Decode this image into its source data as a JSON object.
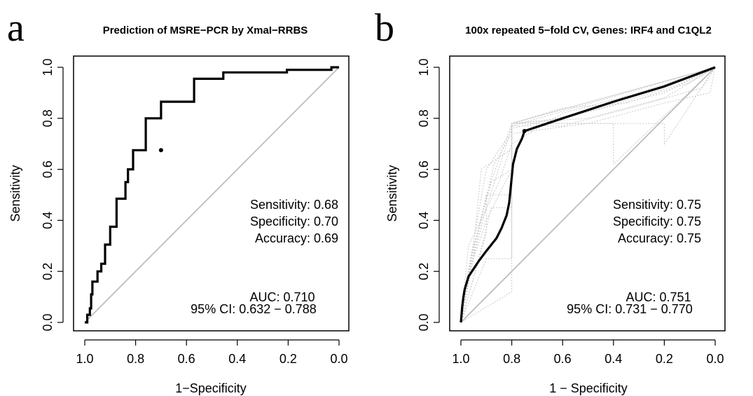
{
  "colors": {
    "roc_line": "#000000",
    "diagonal": "#bdbdbd",
    "cv_curves": "#c8c8c8",
    "frame": "#000000"
  },
  "chart_data": [
    {
      "type": "line",
      "panel_letter": "a",
      "title": "Prediction of MSRE−PCR by XmaI−RRBS",
      "xlabel": "1−Specificity",
      "ylabel": "Sensitivity",
      "xlim": [
        1.0,
        0.0
      ],
      "ylim": [
        0.0,
        1.0
      ],
      "x_reversed": true,
      "xticks": [
        "1.0",
        "0.8",
        "0.6",
        "0.4",
        "0.2",
        "0.0"
      ],
      "yticks": [
        "0.0",
        "0.2",
        "0.4",
        "0.6",
        "0.8",
        "1.0"
      ],
      "grid": false,
      "diagonal": true,
      "series": [
        {
          "x": [
            1.0,
            0.99,
            0.99,
            0.98,
            0.98,
            0.975,
            0.975,
            0.97,
            0.97,
            0.95,
            0.95,
            0.935,
            0.935,
            0.92,
            0.92,
            0.9,
            0.9,
            0.875,
            0.875,
            0.84,
            0.84,
            0.83,
            0.83,
            0.81,
            0.81,
            0.76,
            0.76,
            0.7,
            0.7,
            0.57,
            0.57,
            0.455,
            0.455,
            0.205,
            0.205,
            0.03,
            0.03,
            0.02,
            0.02,
            0.0
          ],
          "y": [
            0.0,
            0.0,
            0.03,
            0.03,
            0.055,
            0.055,
            0.11,
            0.11,
            0.16,
            0.16,
            0.2,
            0.2,
            0.23,
            0.23,
            0.305,
            0.305,
            0.375,
            0.375,
            0.485,
            0.485,
            0.55,
            0.55,
            0.6,
            0.6,
            0.675,
            0.675,
            0.8,
            0.8,
            0.865,
            0.865,
            0.955,
            0.955,
            0.98,
            0.98,
            0.99,
            0.99,
            1.0,
            1.0,
            1.0,
            1.0
          ],
          "operating_point": [
            0.7,
            0.675
          ]
        }
      ],
      "annotations": {
        "sensitivity": "Sensitivity: 0.68",
        "specificity": "Specificity: 0.70",
        "accuracy": "Accuracy: 0.69",
        "auc": "AUC: 0.710",
        "ci": "95% CI: 0.632 − 0.788"
      }
    },
    {
      "type": "line",
      "panel_letter": "b",
      "title": "100x repeated 5−fold CV, Genes: IRF4 and C1QL2",
      "xlabel": "1 − Specificity",
      "ylabel": "Sensitivity",
      "xlim": [
        1.0,
        0.0
      ],
      "ylim": [
        0.0,
        1.0
      ],
      "x_reversed": true,
      "xticks": [
        "1.0",
        "0.8",
        "0.6",
        "0.4",
        "0.2",
        "0.0"
      ],
      "yticks": [
        "0.0",
        "0.2",
        "0.4",
        "0.6",
        "0.8",
        "1.0"
      ],
      "grid": false,
      "diagonal": true,
      "series": [
        {
          "x": [
            1.0,
            0.995,
            0.99,
            0.985,
            0.97,
            0.95,
            0.93,
            0.9,
            0.86,
            0.84,
            0.82,
            0.81,
            0.805,
            0.8,
            0.795,
            0.78,
            0.76,
            0.75,
            0.6,
            0.4,
            0.2,
            0.0
          ],
          "y": [
            0.0,
            0.06,
            0.1,
            0.13,
            0.18,
            0.21,
            0.24,
            0.28,
            0.33,
            0.37,
            0.42,
            0.47,
            0.52,
            0.57,
            0.62,
            0.68,
            0.72,
            0.75,
            0.8,
            0.865,
            0.925,
            1.0
          ],
          "operating_point": [
            0.75,
            0.75
          ]
        }
      ],
      "cv_curves": [
        {
          "x": [
            1.0,
            0.97,
            0.9,
            0.8,
            0.8,
            0.6,
            0.4,
            0.2,
            0.0
          ],
          "y": [
            0.0,
            0.2,
            0.5,
            0.78,
            0.78,
            0.8,
            0.85,
            0.9,
            1.0
          ]
        },
        {
          "x": [
            1.0,
            0.95,
            0.9,
            0.8,
            0.8,
            0.5,
            0.2,
            0.0
          ],
          "y": [
            0.0,
            0.25,
            0.4,
            0.6,
            0.78,
            0.8,
            0.88,
            1.0
          ]
        },
        {
          "x": [
            1.0,
            0.98,
            0.9,
            0.8,
            0.8,
            0.4,
            0.4,
            0.0
          ],
          "y": [
            0.0,
            0.15,
            0.6,
            0.75,
            0.78,
            0.78,
            0.62,
            1.0
          ]
        },
        {
          "x": [
            1.0,
            0.9,
            0.9,
            0.8,
            0.8,
            0.2,
            0.2,
            0.0
          ],
          "y": [
            0.0,
            0.35,
            0.5,
            0.5,
            0.78,
            0.78,
            0.7,
            1.0
          ]
        },
        {
          "x": [
            1.0,
            0.97,
            0.85,
            0.8,
            0.6,
            0.3,
            0.0
          ],
          "y": [
            0.0,
            0.3,
            0.55,
            0.7,
            0.82,
            0.9,
            1.0
          ]
        },
        {
          "x": [
            1.0,
            0.93,
            0.88,
            0.8,
            0.8,
            0.0
          ],
          "y": [
            0.0,
            0.25,
            0.45,
            0.45,
            0.78,
            1.0
          ]
        },
        {
          "x": [
            1.0,
            0.96,
            0.9,
            0.82,
            0.8,
            0.6,
            0.3,
            0.05,
            0.0
          ],
          "y": [
            0.0,
            0.22,
            0.45,
            0.7,
            0.77,
            0.77,
            0.85,
            0.92,
            1.0
          ]
        },
        {
          "x": [
            1.0,
            0.9,
            0.8,
            0.8,
            0.0
          ],
          "y": [
            0.0,
            0.25,
            0.25,
            0.77,
            1.0
          ]
        },
        {
          "x": [
            1.0,
            0.95,
            0.92,
            0.8,
            0.8,
            0.6,
            0.35,
            0.1,
            0.0
          ],
          "y": [
            0.0,
            0.3,
            0.6,
            0.68,
            0.78,
            0.84,
            0.86,
            0.94,
            1.0
          ]
        },
        {
          "x": [
            1.0,
            0.8,
            0.8,
            0.0
          ],
          "y": [
            0.0,
            0.12,
            0.78,
            1.0
          ]
        },
        {
          "x": [
            1.0,
            0.97,
            0.87,
            0.8,
            0.5,
            0.2,
            0.02,
            0.0
          ],
          "y": [
            0.0,
            0.18,
            0.62,
            0.74,
            0.78,
            0.86,
            0.9,
            1.0
          ]
        },
        {
          "x": [
            1.0,
            0.96,
            0.88,
            0.8,
            0.8,
            0.45,
            0.15,
            0.0
          ],
          "y": [
            0.0,
            0.26,
            0.55,
            0.6,
            0.76,
            0.84,
            0.93,
            1.0
          ]
        }
      ],
      "annotations": {
        "sensitivity": "Sensitivity: 0.75",
        "specificity": "Specificity: 0.75",
        "accuracy": "Accuracy: 0.75",
        "auc": "AUC: 0.751",
        "ci": "95% CI: 0.731 − 0.770"
      }
    }
  ]
}
